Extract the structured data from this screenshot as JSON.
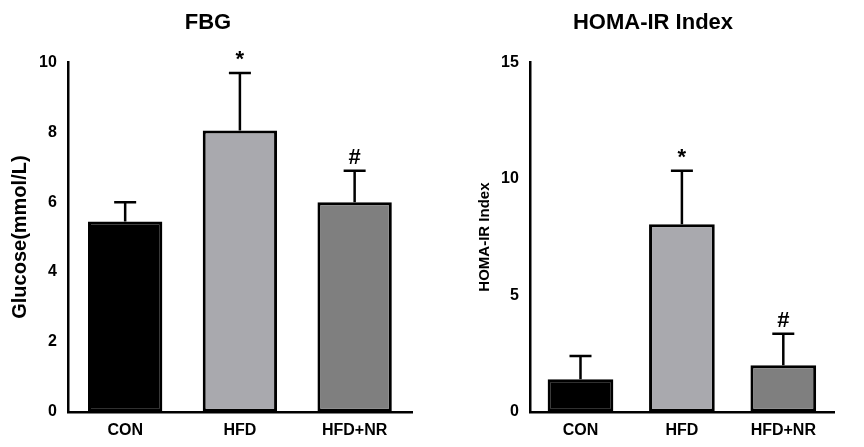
{
  "chart_data": [
    {
      "type": "bar",
      "title": "FBG",
      "y_label": "Glucose(mmol/L)",
      "categories": [
        "CON",
        "HFD",
        "HFD+NR"
      ],
      "values": [
        5.45,
        8.05,
        6.0
      ],
      "errors": [
        0.55,
        1.65,
        0.9
      ],
      "annotations": [
        null,
        "*",
        "#"
      ],
      "colors": [
        "#000000",
        "#a9a9ae",
        "#7f7f7f"
      ],
      "ylim": [
        0,
        10
      ],
      "yticks": [
        0,
        2,
        4,
        6,
        8,
        10
      ],
      "grid": false
    },
    {
      "type": "bar",
      "title": "HOMA-IR Index",
      "y_label": "HOMA-IR Index",
      "categories": [
        "CON",
        "HFD",
        "HFD+NR"
      ],
      "values": [
        1.4,
        8.05,
        2.0
      ],
      "errors": [
        1.0,
        2.3,
        1.35
      ],
      "annotations": [
        null,
        "*",
        "#"
      ],
      "colors": [
        "#000000",
        "#a9a9ae",
        "#7f7f7f"
      ],
      "ylim": [
        0,
        15
      ],
      "yticks": [
        0,
        5,
        10,
        15
      ],
      "grid": false
    }
  ]
}
